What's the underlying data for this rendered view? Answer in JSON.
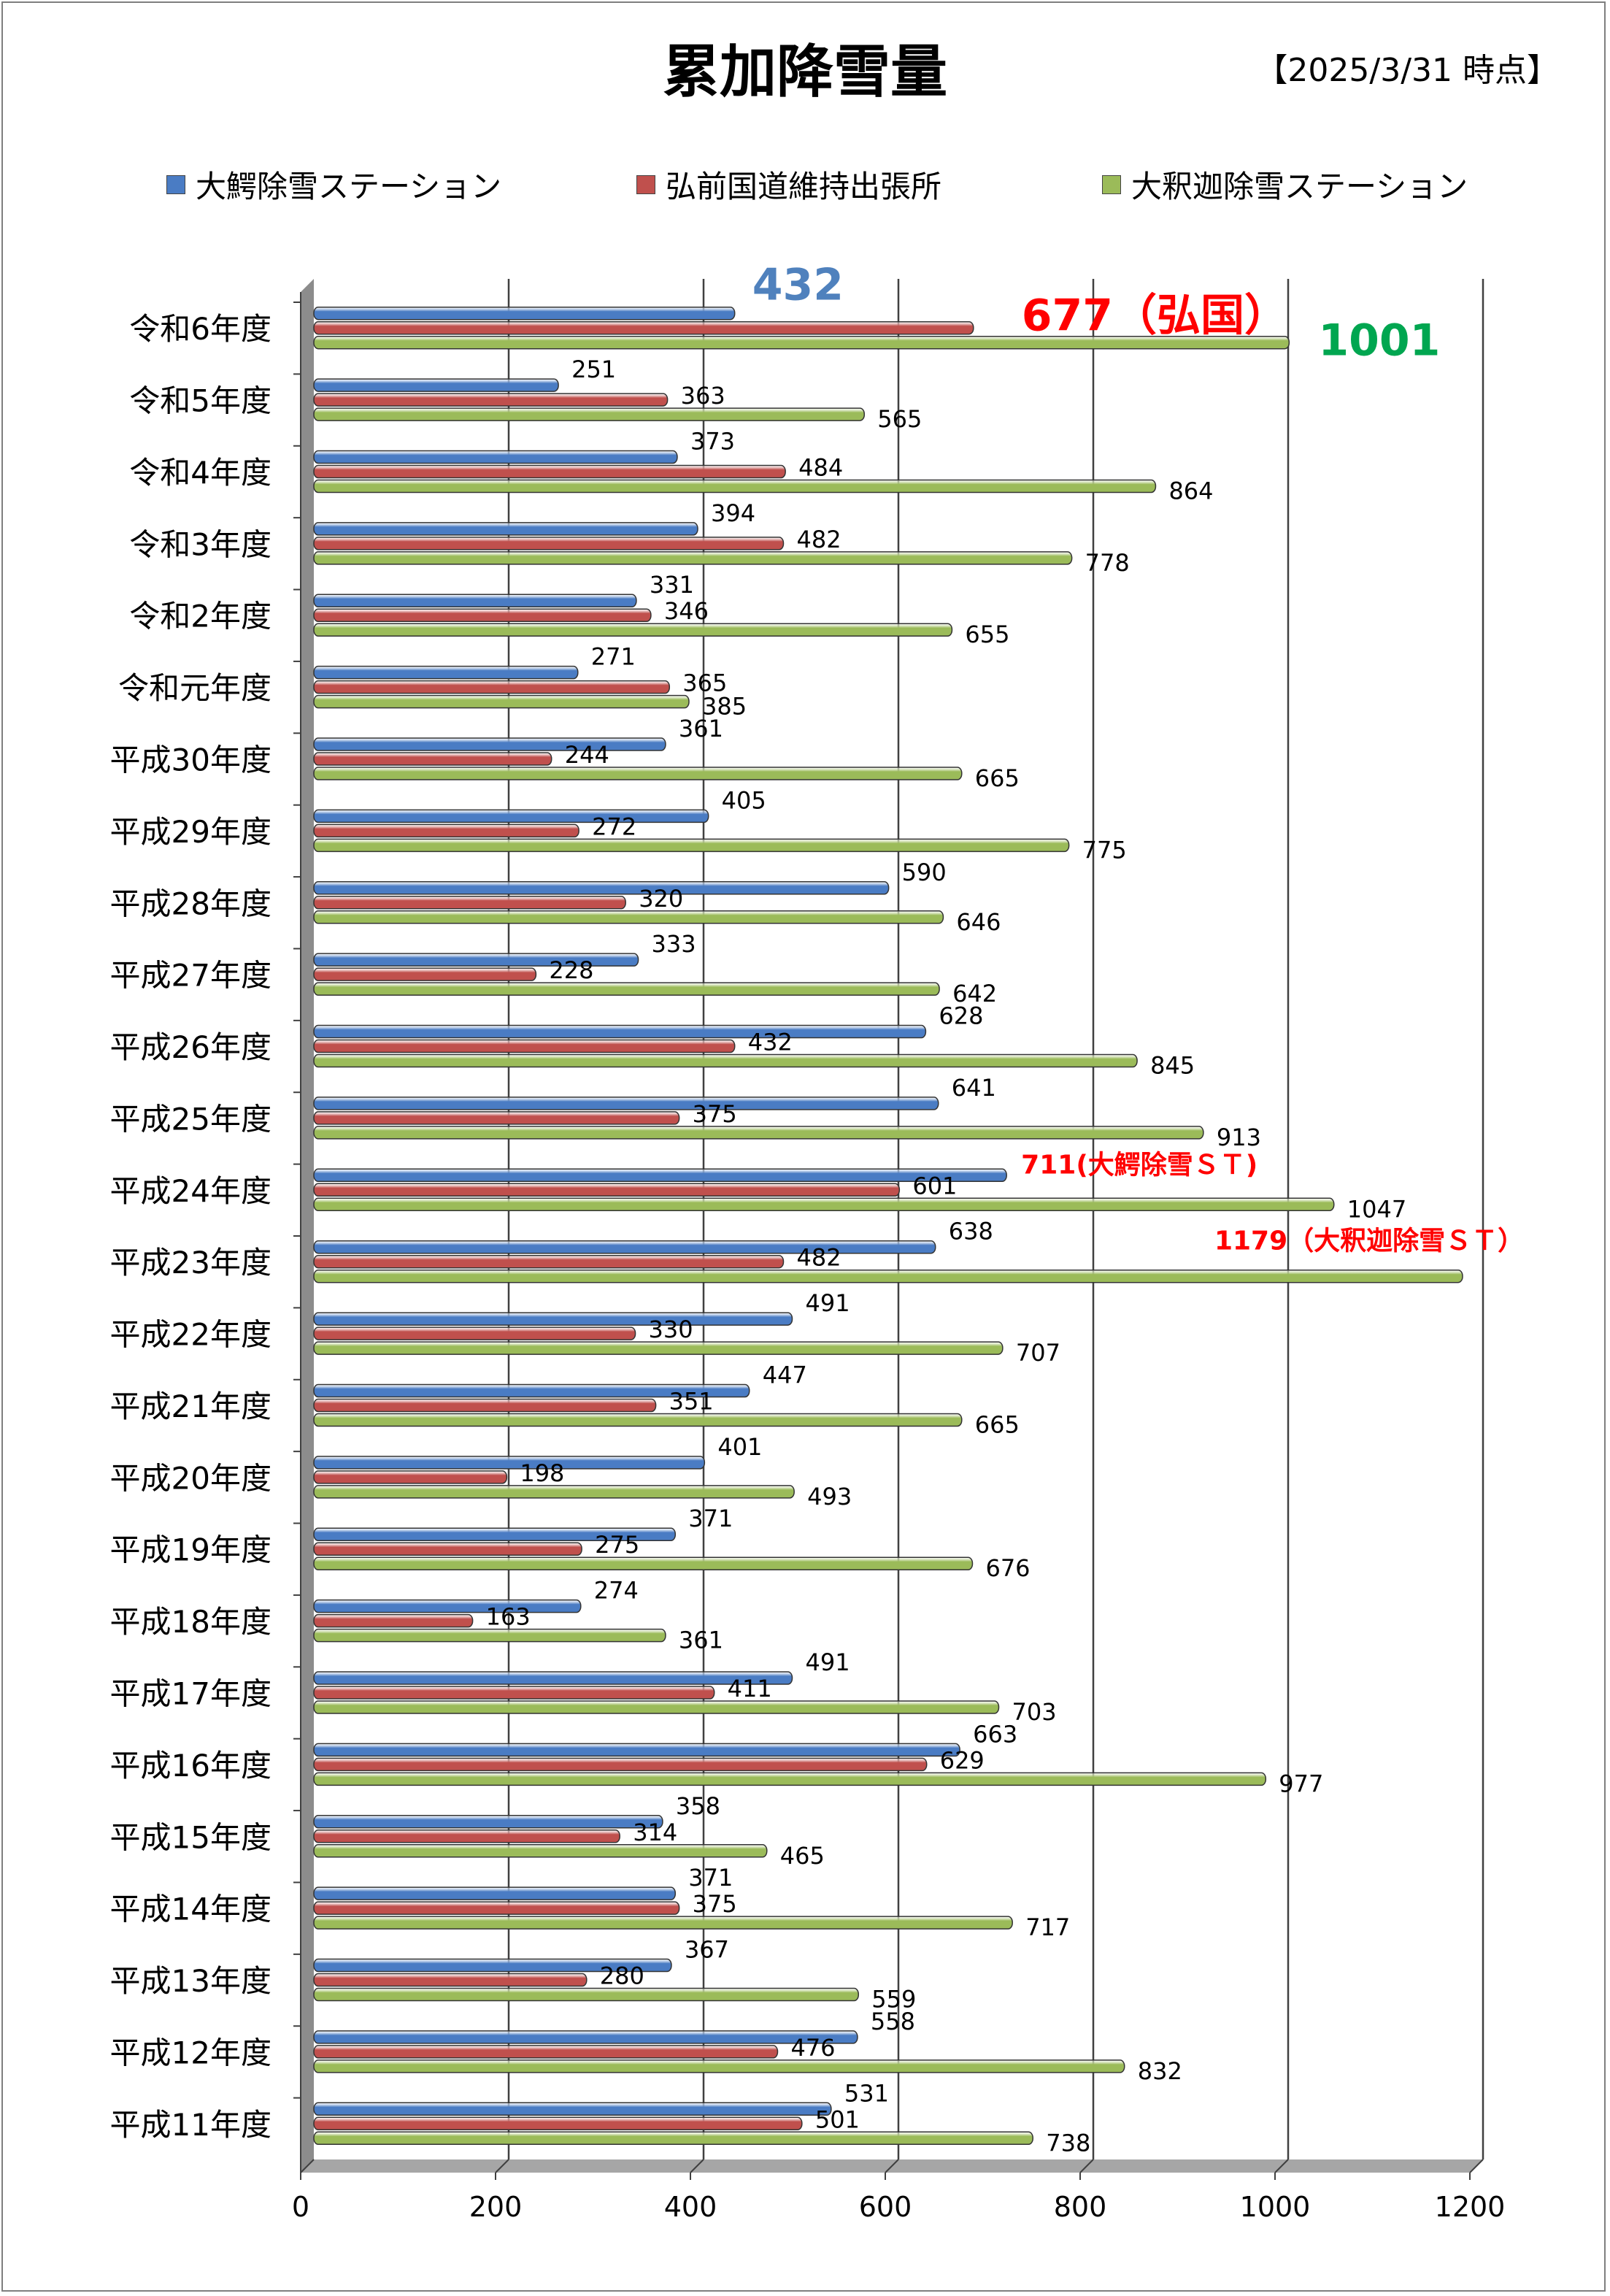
{
  "chart_data": {
    "type": "bar",
    "orientation": "horizontal",
    "title": "累加降雪量",
    "as_of": "【2025/3/31 時点】",
    "xlabel": "",
    "ylabel": "",
    "xlim": [
      0,
      1200
    ],
    "xticks": [
      "0",
      "200",
      "400",
      "600",
      "800",
      "1000",
      "1200"
    ],
    "grid": "vertical",
    "legend_position": "top",
    "categories": [
      "令和6年度",
      "令和5年度",
      "令和4年度",
      "令和3年度",
      "令和2年度",
      "令和元年度",
      "平成30年度",
      "平成29年度",
      "平成28年度",
      "平成27年度",
      "平成26年度",
      "平成25年度",
      "平成24年度",
      "平成23年度",
      "平成22年度",
      "平成21年度",
      "平成20年度",
      "平成19年度",
      "平成18年度",
      "平成17年度",
      "平成16年度",
      "平成15年度",
      "平成14年度",
      "平成13年度",
      "平成12年度",
      "平成11年度"
    ],
    "series": [
      {
        "name": "大鰐除雪ステーション",
        "color": "#4a7cc4",
        "values": [
          432,
          251,
          373,
          394,
          331,
          271,
          361,
          405,
          590,
          333,
          628,
          641,
          711,
          638,
          491,
          447,
          401,
          371,
          274,
          491,
          663,
          358,
          371,
          367,
          558,
          531
        ]
      },
      {
        "name": "弘前国道維持出張所",
        "color": "#c0504d",
        "values": [
          677,
          363,
          484,
          482,
          346,
          365,
          244,
          272,
          320,
          228,
          432,
          375,
          601,
          482,
          330,
          351,
          198,
          275,
          163,
          411,
          629,
          314,
          375,
          280,
          476,
          501
        ]
      },
      {
        "name": "大釈迦除雪ステーション",
        "color": "#9bbb59",
        "values": [
          1001,
          565,
          864,
          778,
          655,
          385,
          665,
          775,
          646,
          642,
          845,
          913,
          1047,
          1179,
          707,
          665,
          493,
          676,
          361,
          703,
          977,
          465,
          717,
          559,
          832,
          738
        ]
      }
    ],
    "data_labels": [
      [
        "432",
        "251",
        "373",
        "394",
        "331",
        "271",
        "361",
        "405",
        "590",
        "333",
        "628",
        "641",
        "711(大鰐除雪ＳＴ)",
        "638",
        "491",
        "447",
        "401",
        "371",
        "274",
        "491",
        "663",
        "358",
        "371",
        "367",
        "558",
        "531"
      ],
      [
        "677（弘国）",
        "363",
        "484",
        "482",
        "346",
        "365",
        "244",
        "272",
        "320",
        "228",
        "432",
        "375",
        "601",
        "482",
        "330",
        "351",
        "198",
        "275",
        "163",
        "411",
        "629",
        "314",
        "375",
        "280",
        "476",
        "501"
      ],
      [
        "1001",
        "565",
        "864",
        "778",
        "655",
        "385",
        "665",
        "775",
        "646",
        "642",
        "845",
        "913",
        "1047",
        "1179（大釈迦除雪ＳＴ）",
        "707",
        "665",
        "493",
        "676",
        "361",
        "703",
        "977",
        "465",
        "717",
        "559",
        "832",
        "738"
      ]
    ],
    "highlight_colors": {
      "latest_series_0": "#4f81bd",
      "latest_series_1": "#ff0000",
      "latest_series_2": "#00a650",
      "record_label": "#ff0000"
    }
  }
}
